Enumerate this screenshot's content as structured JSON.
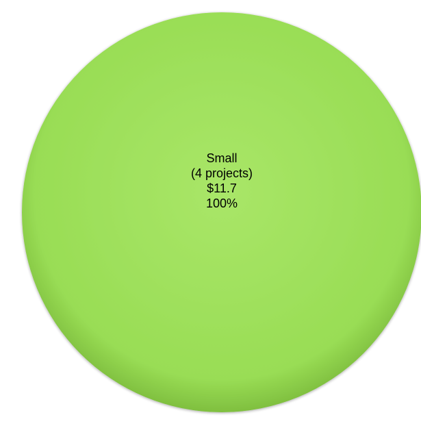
{
  "chart_data": {
    "type": "pie",
    "title": "",
    "slices": [
      {
        "label": "Small",
        "projects_label": "(4 projects)",
        "value_label": "$11.7",
        "percent_label": "100%",
        "value": 11.7,
        "percent": 100,
        "color": "#99dd55"
      }
    ],
    "legend": "none"
  },
  "colors": {
    "slice_fill": "#99dd55",
    "slice_highlight": "#a9e668",
    "slice_shadow": "#7fbf3f",
    "label_text": "#000000"
  }
}
